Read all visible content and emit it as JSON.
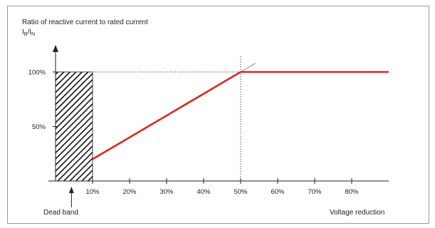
{
  "chart_data": {
    "type": "line",
    "title": "Ratio of reactive current to rated current",
    "ylabel_main": "I",
    "ylabel_sub1": "B",
    "ylabel_div": "/I",
    "ylabel_sub2": "N",
    "xlabel": "Voltage reduction",
    "x_ticks": [
      10,
      20,
      30,
      40,
      50,
      60,
      70,
      80
    ],
    "x_tick_labels": [
      "10%",
      "20%",
      "30%",
      "40%",
      "50%",
      "60%",
      "70%",
      "80%"
    ],
    "y_ticks": [
      50,
      100
    ],
    "y_tick_labels": [
      "50%",
      "100%"
    ],
    "xlim": [
      0,
      90
    ],
    "ylim": [
      0,
      100
    ],
    "series": [
      {
        "x": [
          10,
          50,
          90
        ],
        "y": [
          20,
          100,
          100
        ],
        "color": "#d42a1e"
      }
    ],
    "dead_band": {
      "x_start": 0,
      "x_end": 10,
      "label": "Dead band"
    },
    "reference_lines": {
      "horizontal_y": 100,
      "vertical_x": 50
    },
    "grid": false
  }
}
